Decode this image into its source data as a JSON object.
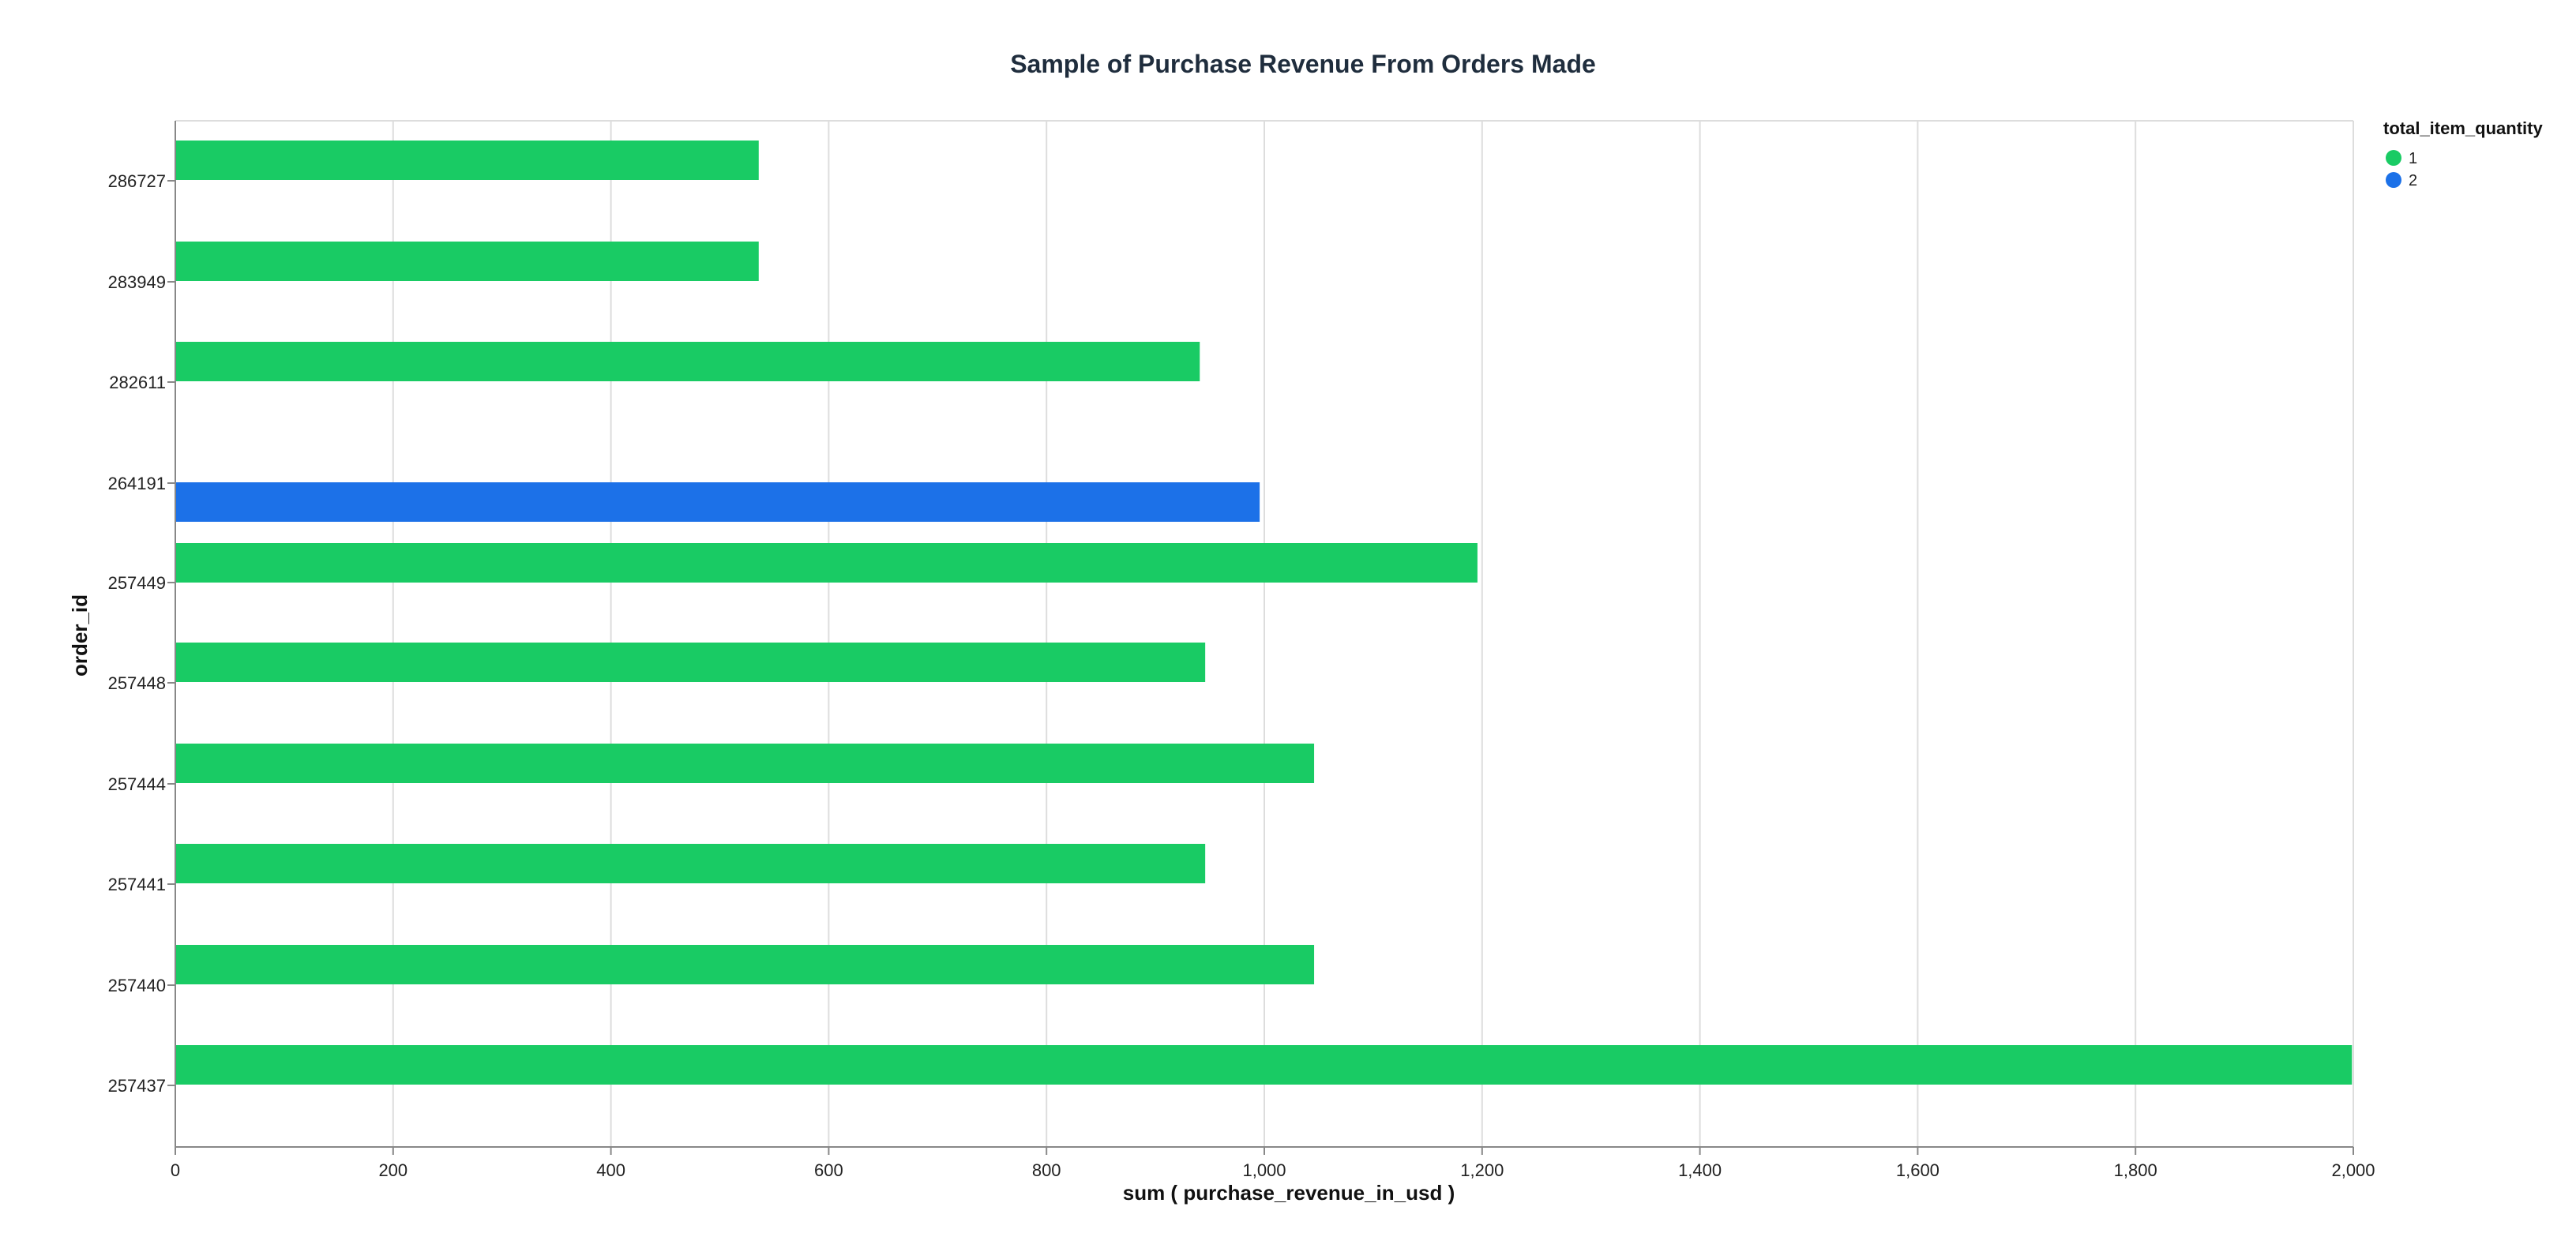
{
  "chart_data": {
    "type": "bar",
    "orientation": "horizontal",
    "title": "Sample of Purchase Revenue From Orders Made",
    "xlabel": "sum ( purchase_revenue_in_usd )",
    "ylabel": "order_id",
    "xlim": [
      0,
      2000
    ],
    "xticks": [
      "0",
      "200",
      "400",
      "600",
      "800",
      "1,000",
      "1,200",
      "1,400",
      "1,600",
      "1,800",
      "2,000"
    ],
    "grid": true,
    "legend": {
      "title": "total_item_quantity",
      "placement": "top-right",
      "entries": [
        {
          "label": "1",
          "color": "#19cb64"
        },
        {
          "label": "2",
          "color": "#1c71e8"
        }
      ]
    },
    "categories": [
      "286727",
      "283949",
      "282611",
      "264191",
      "257449",
      "257448",
      "257444",
      "257441",
      "257440",
      "257437"
    ],
    "bars": [
      {
        "order_id": "286727",
        "total_item_quantity": "1",
        "value": 535
      },
      {
        "order_id": "283949",
        "total_item_quantity": "1",
        "value": 535
      },
      {
        "order_id": "282611",
        "total_item_quantity": "1",
        "value": 940
      },
      {
        "order_id": "264191",
        "total_item_quantity": "2",
        "value": 995
      },
      {
        "order_id": "257449",
        "total_item_quantity": "1",
        "value": 1195
      },
      {
        "order_id": "257448",
        "total_item_quantity": "1",
        "value": 945
      },
      {
        "order_id": "257444",
        "total_item_quantity": "1",
        "value": 1045
      },
      {
        "order_id": "257441",
        "total_item_quantity": "1",
        "value": 945
      },
      {
        "order_id": "257440",
        "total_item_quantity": "1",
        "value": 1045
      },
      {
        "order_id": "257437",
        "total_item_quantity": "1",
        "value": 1998
      }
    ]
  }
}
